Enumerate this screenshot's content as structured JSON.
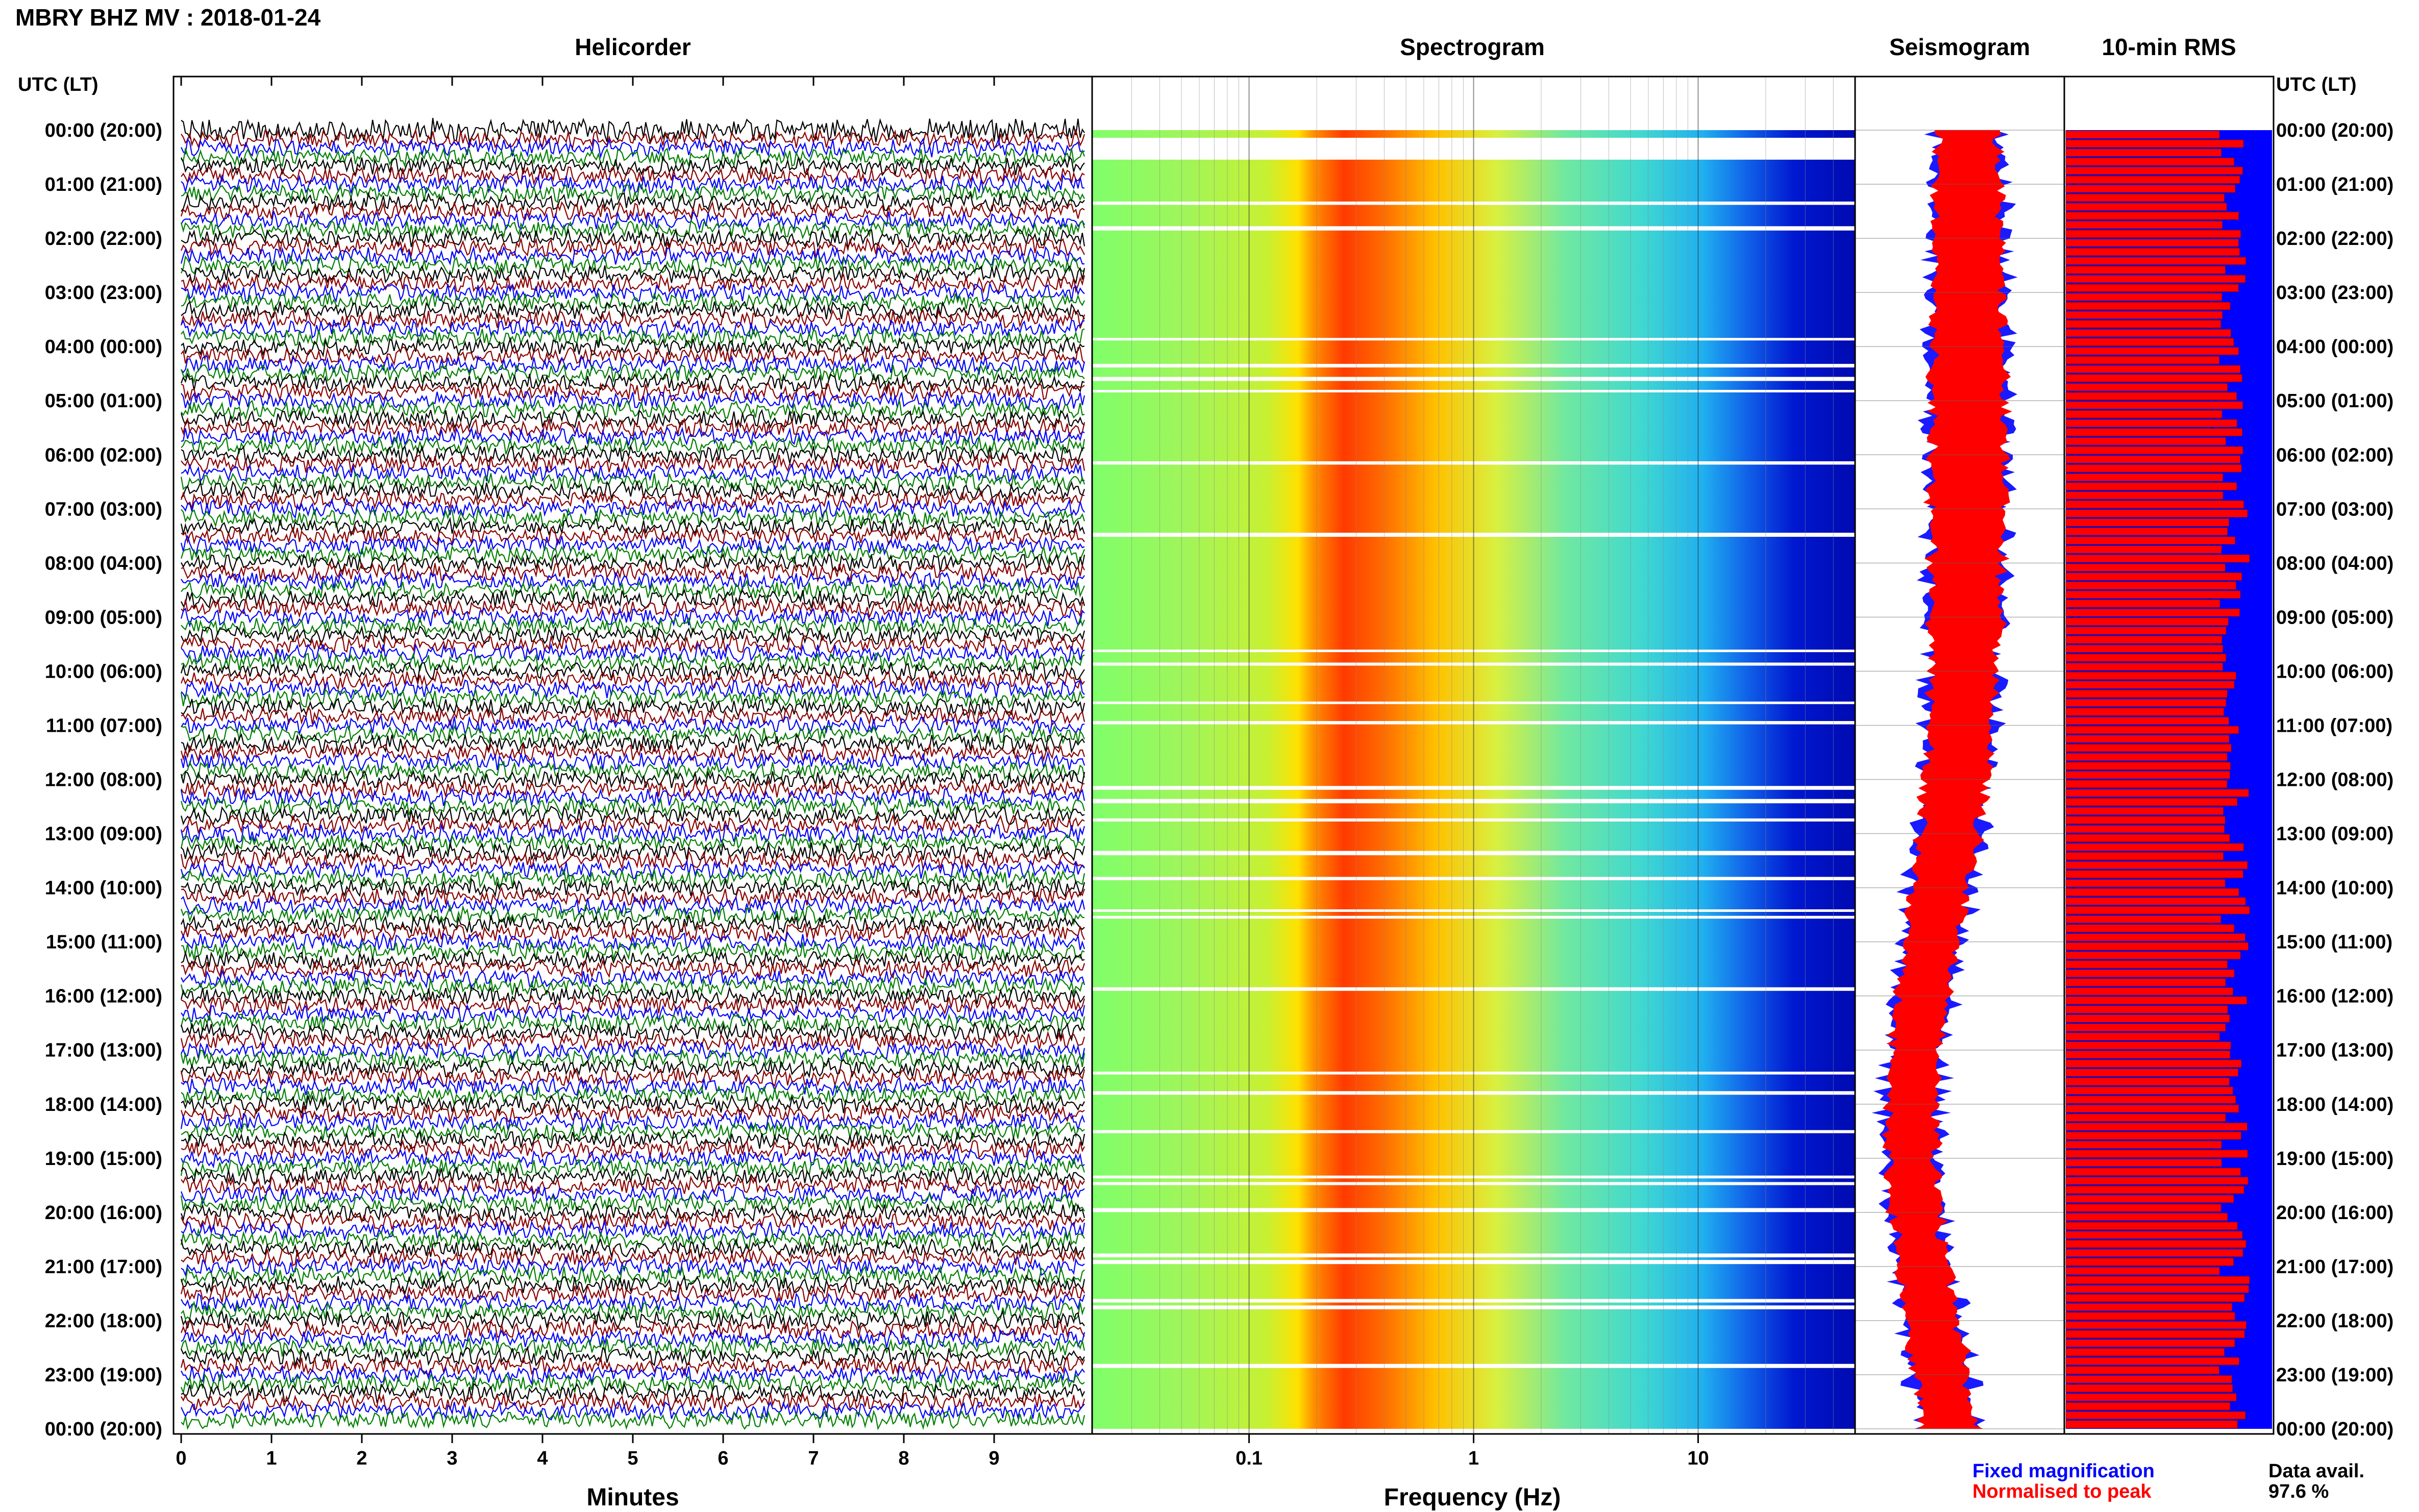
{
  "header": {
    "title": "MBRY BHZ MV : 2018-01-24",
    "left_axis_title": "UTC (LT)",
    "right_axis_title": "UTC (LT)"
  },
  "panels": {
    "helicorder": "Helicorder",
    "spectrogram": "Spectrogram",
    "seismogram": "Seismogram",
    "rms": "10-min RMS"
  },
  "time_labels": [
    "00:00 (20:00)",
    "01:00 (21:00)",
    "02:00 (22:00)",
    "03:00 (23:00)",
    "04:00 (00:00)",
    "05:00 (01:00)",
    "06:00 (02:00)",
    "07:00 (03:00)",
    "08:00 (04:00)",
    "09:00 (05:00)",
    "10:00 (06:00)",
    "11:00 (07:00)",
    "12:00 (08:00)",
    "13:00 (09:00)",
    "14:00 (10:00)",
    "15:00 (11:00)",
    "16:00 (12:00)",
    "17:00 (13:00)",
    "18:00 (14:00)",
    "19:00 (15:00)",
    "20:00 (16:00)",
    "21:00 (17:00)",
    "22:00 (18:00)",
    "23:00 (19:00)",
    "00:00 (20:00)"
  ],
  "legend": {
    "fixed_label": "Fixed magnification",
    "normalised_label": "Normalised to peak",
    "fixed_color": "#0000ff",
    "normalised_color": "#ff0000",
    "avail_label": "Data avail.",
    "avail_value": "97.6 %"
  },
  "chart_data": [
    {
      "type": "line",
      "panel": "Helicorder",
      "xlabel": "Minutes",
      "xlim": [
        0,
        10
      ],
      "x_ticks": [
        "0",
        "1",
        "2",
        "3",
        "4",
        "5",
        "6",
        "7",
        "8",
        "9"
      ],
      "y_ticks": "time_labels",
      "trace_colors": [
        "#000000",
        "#8b0000",
        "#0000ff",
        "#008000"
      ],
      "rows_per_hour": 6
    },
    {
      "type": "heatmap",
      "panel": "Spectrogram",
      "xlabel": "Frequency (Hz)",
      "x_scale": "log",
      "xlim": [
        0.02,
        50
      ],
      "x_ticks": [
        0.1,
        1,
        10
      ],
      "x_tick_labels": [
        "0.1",
        "1",
        "10"
      ],
      "colormap": [
        "#00008b",
        "#0000ff",
        "#00bfff",
        "#40e0d0",
        "#adff2f",
        "#ffff00",
        "#ffa500",
        "#ff4500",
        "#ff0000"
      ]
    },
    {
      "type": "area",
      "panel": "Seismogram",
      "series": [
        {
          "name": "Fixed magnification",
          "color": "#0000ff"
        },
        {
          "name": "Normalised to peak",
          "color": "#ff0000"
        }
      ]
    },
    {
      "type": "bar",
      "panel": "10-min RMS",
      "series": [
        {
          "name": "Fixed magnification",
          "color": "#0000ff"
        },
        {
          "name": "Normalised to peak",
          "color": "#ff0000"
        }
      ]
    }
  ]
}
